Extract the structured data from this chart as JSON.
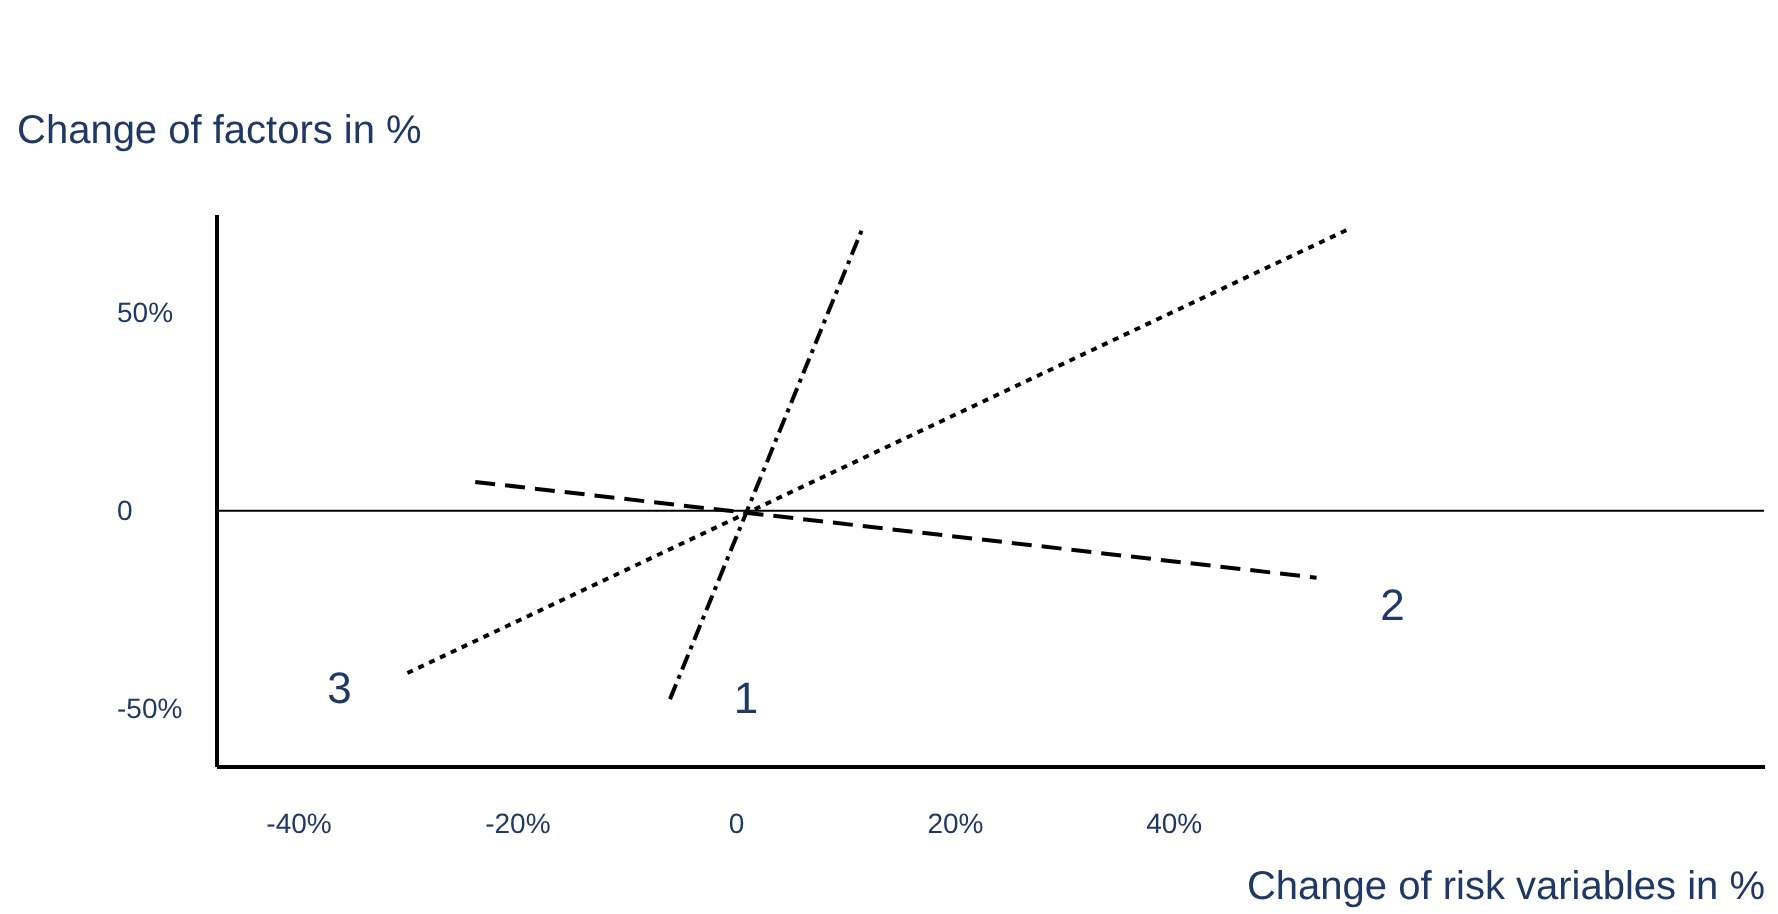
{
  "chart_data": {
    "type": "line",
    "xlabel": "Change of risk variables in %",
    "ylabel": "Change of factors in %",
    "xlim": [
      -47.5,
      94
    ],
    "ylim": [
      -64.5,
      75
    ],
    "xticks": [
      {
        "value": -40,
        "label": "-40%"
      },
      {
        "value": -20,
        "label": "-20%"
      },
      0,
      {
        "value": 20,
        "label": "20%"
      },
      {
        "value": 40,
        "label": "40%"
      }
    ],
    "yticks": [
      {
        "value": -50,
        "label": "-50%"
      },
      0,
      {
        "value": 50,
        "label": "50%"
      }
    ],
    "grid": false,
    "legend": false,
    "marker": "none",
    "series": [
      {
        "name": "1",
        "color": "#000000",
        "line_style": "dashdot",
        "x": [
          -6,
          11.6
        ],
        "values": [
          -47.6,
          71.4
        ]
      },
      {
        "name": "2",
        "color": "#000000",
        "line_style": "dashed",
        "x": [
          -23.8,
          53.1
        ],
        "values": [
          7.3,
          -16.9
        ]
      },
      {
        "name": "3",
        "color": "#000000",
        "line_style": "dotted",
        "x": [
          -30,
          56.2
        ],
        "values": [
          -41,
          71.4
        ]
      }
    ],
    "ref_lines": [
      {
        "axis": "y",
        "value": 0,
        "color": "#000000",
        "line_style": "solid"
      }
    ]
  }
}
